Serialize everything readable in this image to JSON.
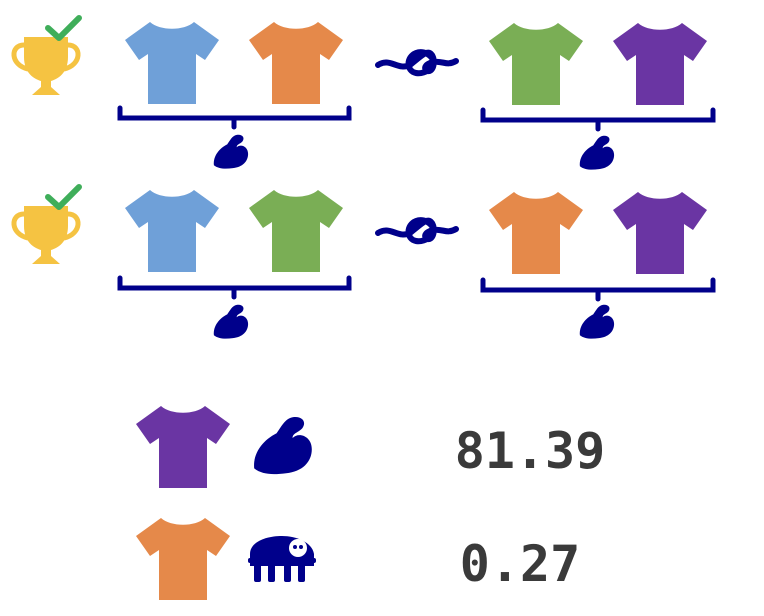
{
  "colors": {
    "navy": "#00008b",
    "trophy": "#f5c342",
    "check": "#3fae5a",
    "shirt_blue": "#6fa0d8",
    "shirt_orange": "#e5894a",
    "shirt_green": "#7aae55",
    "shirt_purple": "#6a35a3"
  },
  "icons": {
    "trophy": "trophy-icon",
    "check": "checkmark-icon",
    "shirt": "tshirt-icon",
    "knot": "knot-icon",
    "strength": "flexed-biceps-icon",
    "weakness": "sloth-icon"
  },
  "matchups": [
    {
      "winner_team": [
        "shirt_blue",
        "shirt_orange"
      ],
      "loser_team": [
        "shirt_green",
        "shirt_purple"
      ]
    },
    {
      "winner_team": [
        "shirt_blue",
        "shirt_green"
      ],
      "loser_team": [
        "shirt_orange",
        "shirt_purple"
      ]
    }
  ],
  "stats": [
    {
      "shirt": "shirt_purple",
      "icon": "strength",
      "value": "81.39"
    },
    {
      "shirt": "shirt_orange",
      "icon": "weakness",
      "value": "0.27"
    }
  ]
}
